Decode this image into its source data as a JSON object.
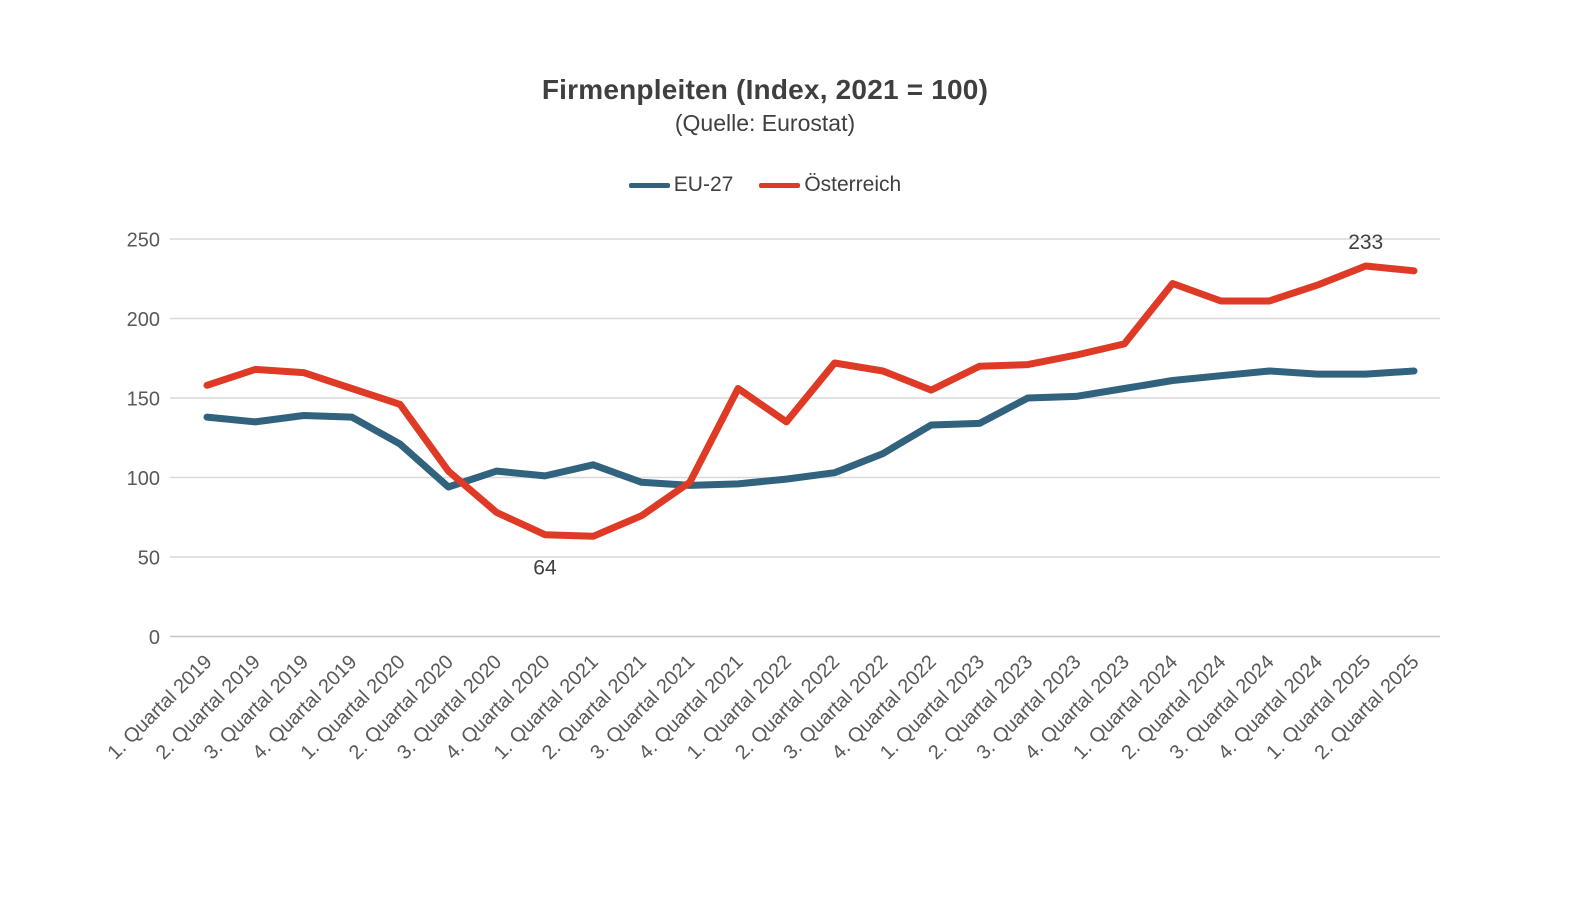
{
  "chart_data": {
    "type": "line",
    "title": "Firmenpleiten (Index, 2021 = 100)",
    "subtitle": "(Quelle: Eurostat)",
    "categories": [
      "1. Quartal 2019",
      "2. Quartal 2019",
      "3. Quartal 2019",
      "4. Quartal 2019",
      "1. Quartal 2020",
      "2. Quartal 2020",
      "3. Quartal 2020",
      "4. Quartal 2020",
      "1. Quartal 2021",
      "2. Quartal 2021",
      "3. Quartal 2021",
      "4. Quartal 2021",
      "1. Quartal 2022",
      "2. Quartal 2022",
      "3. Quartal 2022",
      "4. Quartal 2022",
      "1. Quartal 2023",
      "2. Quartal 2023",
      "3. Quartal 2023",
      "4. Quartal 2023",
      "1. Quartal 2024",
      "2. Quartal 2024",
      "3. Quartal 2024",
      "4. Quartal 2024",
      "1. Quartal 2025",
      "2. Quartal 2025"
    ],
    "series": [
      {
        "name": "EU-27",
        "color": "#31627E",
        "values": [
          138,
          135,
          139,
          138,
          121,
          94,
          104,
          101,
          108,
          97,
          95,
          96,
          99,
          103,
          115,
          133,
          134,
          150,
          151,
          156,
          161,
          164,
          167,
          165,
          165,
          167
        ]
      },
      {
        "name": "Österreich",
        "color": "#DE3A26",
        "values": [
          158,
          168,
          166,
          156,
          146,
          104,
          78,
          64,
          63,
          76,
          97,
          156,
          135,
          172,
          167,
          155,
          170,
          171,
          177,
          184,
          222,
          211,
          211,
          221,
          233,
          230
        ]
      }
    ],
    "ylim": [
      0,
      250
    ],
    "yticks": [
      0,
      50,
      100,
      150,
      200,
      250
    ],
    "grid": true,
    "legend_position": "top-center",
    "annotations": [
      {
        "series": "Österreich",
        "category": "4. Quartal 2020",
        "value": 64,
        "label": "64",
        "placement": "below"
      },
      {
        "series": "Österreich",
        "category": "1. Quartal 2025",
        "value": 233,
        "label": "233",
        "placement": "above"
      }
    ]
  },
  "styles": {
    "background": "#FFFFFF",
    "grid_color": "#D9D9D9",
    "axis_line_color": "#C6C6C6",
    "tick_label_color": "#595959",
    "title_color": "#3F3F3F",
    "data_label_color": "#404040"
  }
}
